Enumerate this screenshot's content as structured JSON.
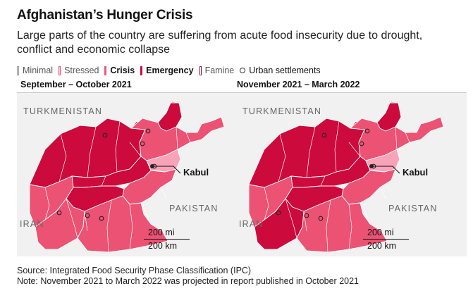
{
  "title": "Afghanistan’s Hunger Crisis",
  "subtitle": "Large parts of the country are suffering from acute food insecurity due to drought, conflict and economic collapse",
  "legend": [
    {
      "label": "Minimal",
      "color": "#f2f2f2",
      "border": "#9a9a9a",
      "bold": false
    },
    {
      "label": "Stressed",
      "color": "#fbd0da",
      "border": "#e8506e",
      "bold": false
    },
    {
      "label": "Crisis",
      "color": "#ed5577",
      "border": "#ed5577",
      "bold": true
    },
    {
      "label": "Emergency",
      "color": "#cc0a3c",
      "border": "#cc0a3c",
      "bold": true
    },
    {
      "label": "Famine",
      "color": "#ffffff",
      "border": "#8a1030",
      "bold": false
    },
    {
      "label": "Urban settlements",
      "symbol": "circle",
      "bold": false
    }
  ],
  "colors": {
    "stressed": "#f8a3b8",
    "crisis": "#ec5274",
    "emergency": "#cc0a3c",
    "background": "#f1f1f1",
    "boundary": "#ffffff"
  },
  "panels": [
    {
      "label": "September – October 2021",
      "countries": {
        "north": "TURKMENISTAN",
        "west": "IRAN",
        "east": "PAKISTAN"
      },
      "city": "Kabul",
      "scale": {
        "mi": "200 mi",
        "km": "200 km"
      },
      "south_phase": "crisis",
      "southwest_phase": "crisis"
    },
    {
      "label": "November 2021 – March 2022",
      "countries": {
        "north": "TURKMENISTAN",
        "west": "IRAN",
        "east": "PAKISTAN"
      },
      "city": "Kabul",
      "scale": {
        "mi": "200 mi",
        "km": "200 km"
      },
      "south_phase": "crisis",
      "southwest_phase": "emergency"
    }
  ],
  "source": "Source: Integrated Food Security Phase Classification (IPC)",
  "note": "Note: November 2021 to March 2022 was projected in report published in October 2021"
}
